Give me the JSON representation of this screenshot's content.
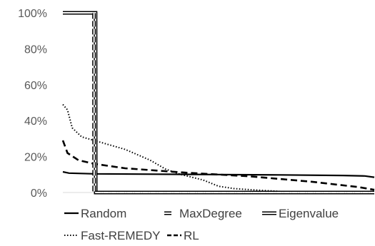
{
  "chart_data": {
    "type": "line",
    "title": "",
    "xlabel": "",
    "ylabel": "",
    "ylim": [
      0,
      100
    ],
    "yticks": [
      "0%",
      "20%",
      "40%",
      "60%",
      "80%",
      "100%"
    ],
    "grid": false,
    "legend_position": "bottom",
    "series": [
      {
        "name": "Random",
        "style": "solid",
        "color": "#000000",
        "points": [
          [
            0,
            11.5
          ],
          [
            2,
            10.8
          ],
          [
            10,
            10.4
          ],
          [
            30,
            10.2
          ],
          [
            50,
            10.0
          ],
          [
            70,
            9.8
          ],
          [
            90,
            9.5
          ],
          [
            97,
            9.2
          ],
          [
            100,
            8.5
          ]
        ]
      },
      {
        "name": "MaxDegree",
        "style": "double-dashed",
        "color": "#000000",
        "points": [
          [
            0,
            100
          ],
          [
            10,
            100
          ],
          [
            10.05,
            0
          ],
          [
            100,
            0
          ]
        ]
      },
      {
        "name": "Eigenvalue",
        "style": "double",
        "color": "#000000",
        "points": [
          [
            0,
            100
          ],
          [
            10.5,
            100
          ],
          [
            10.55,
            0
          ],
          [
            100,
            0
          ]
        ]
      },
      {
        "name": "Fast-REMEDY",
        "style": "dotted",
        "color": "#000000",
        "points": [
          [
            0,
            49
          ],
          [
            1.5,
            46
          ],
          [
            3,
            36
          ],
          [
            6,
            31
          ],
          [
            10,
            29
          ],
          [
            20,
            24
          ],
          [
            28,
            18
          ],
          [
            33,
            13
          ],
          [
            38,
            10
          ],
          [
            45,
            7
          ],
          [
            50,
            3.5
          ],
          [
            55,
            2.2
          ],
          [
            60,
            1.6
          ],
          [
            70,
            0.6
          ],
          [
            80,
            0.3
          ],
          [
            100,
            0
          ]
        ]
      },
      {
        "name": "RL",
        "style": "dashed",
        "color": "#000000",
        "points": [
          [
            0,
            29
          ],
          [
            1.5,
            22
          ],
          [
            5,
            18
          ],
          [
            10,
            16
          ],
          [
            20,
            13.5
          ],
          [
            40,
            11
          ],
          [
            60,
            9
          ],
          [
            80,
            6
          ],
          [
            95,
            3
          ],
          [
            100,
            1.5
          ]
        ]
      }
    ]
  }
}
